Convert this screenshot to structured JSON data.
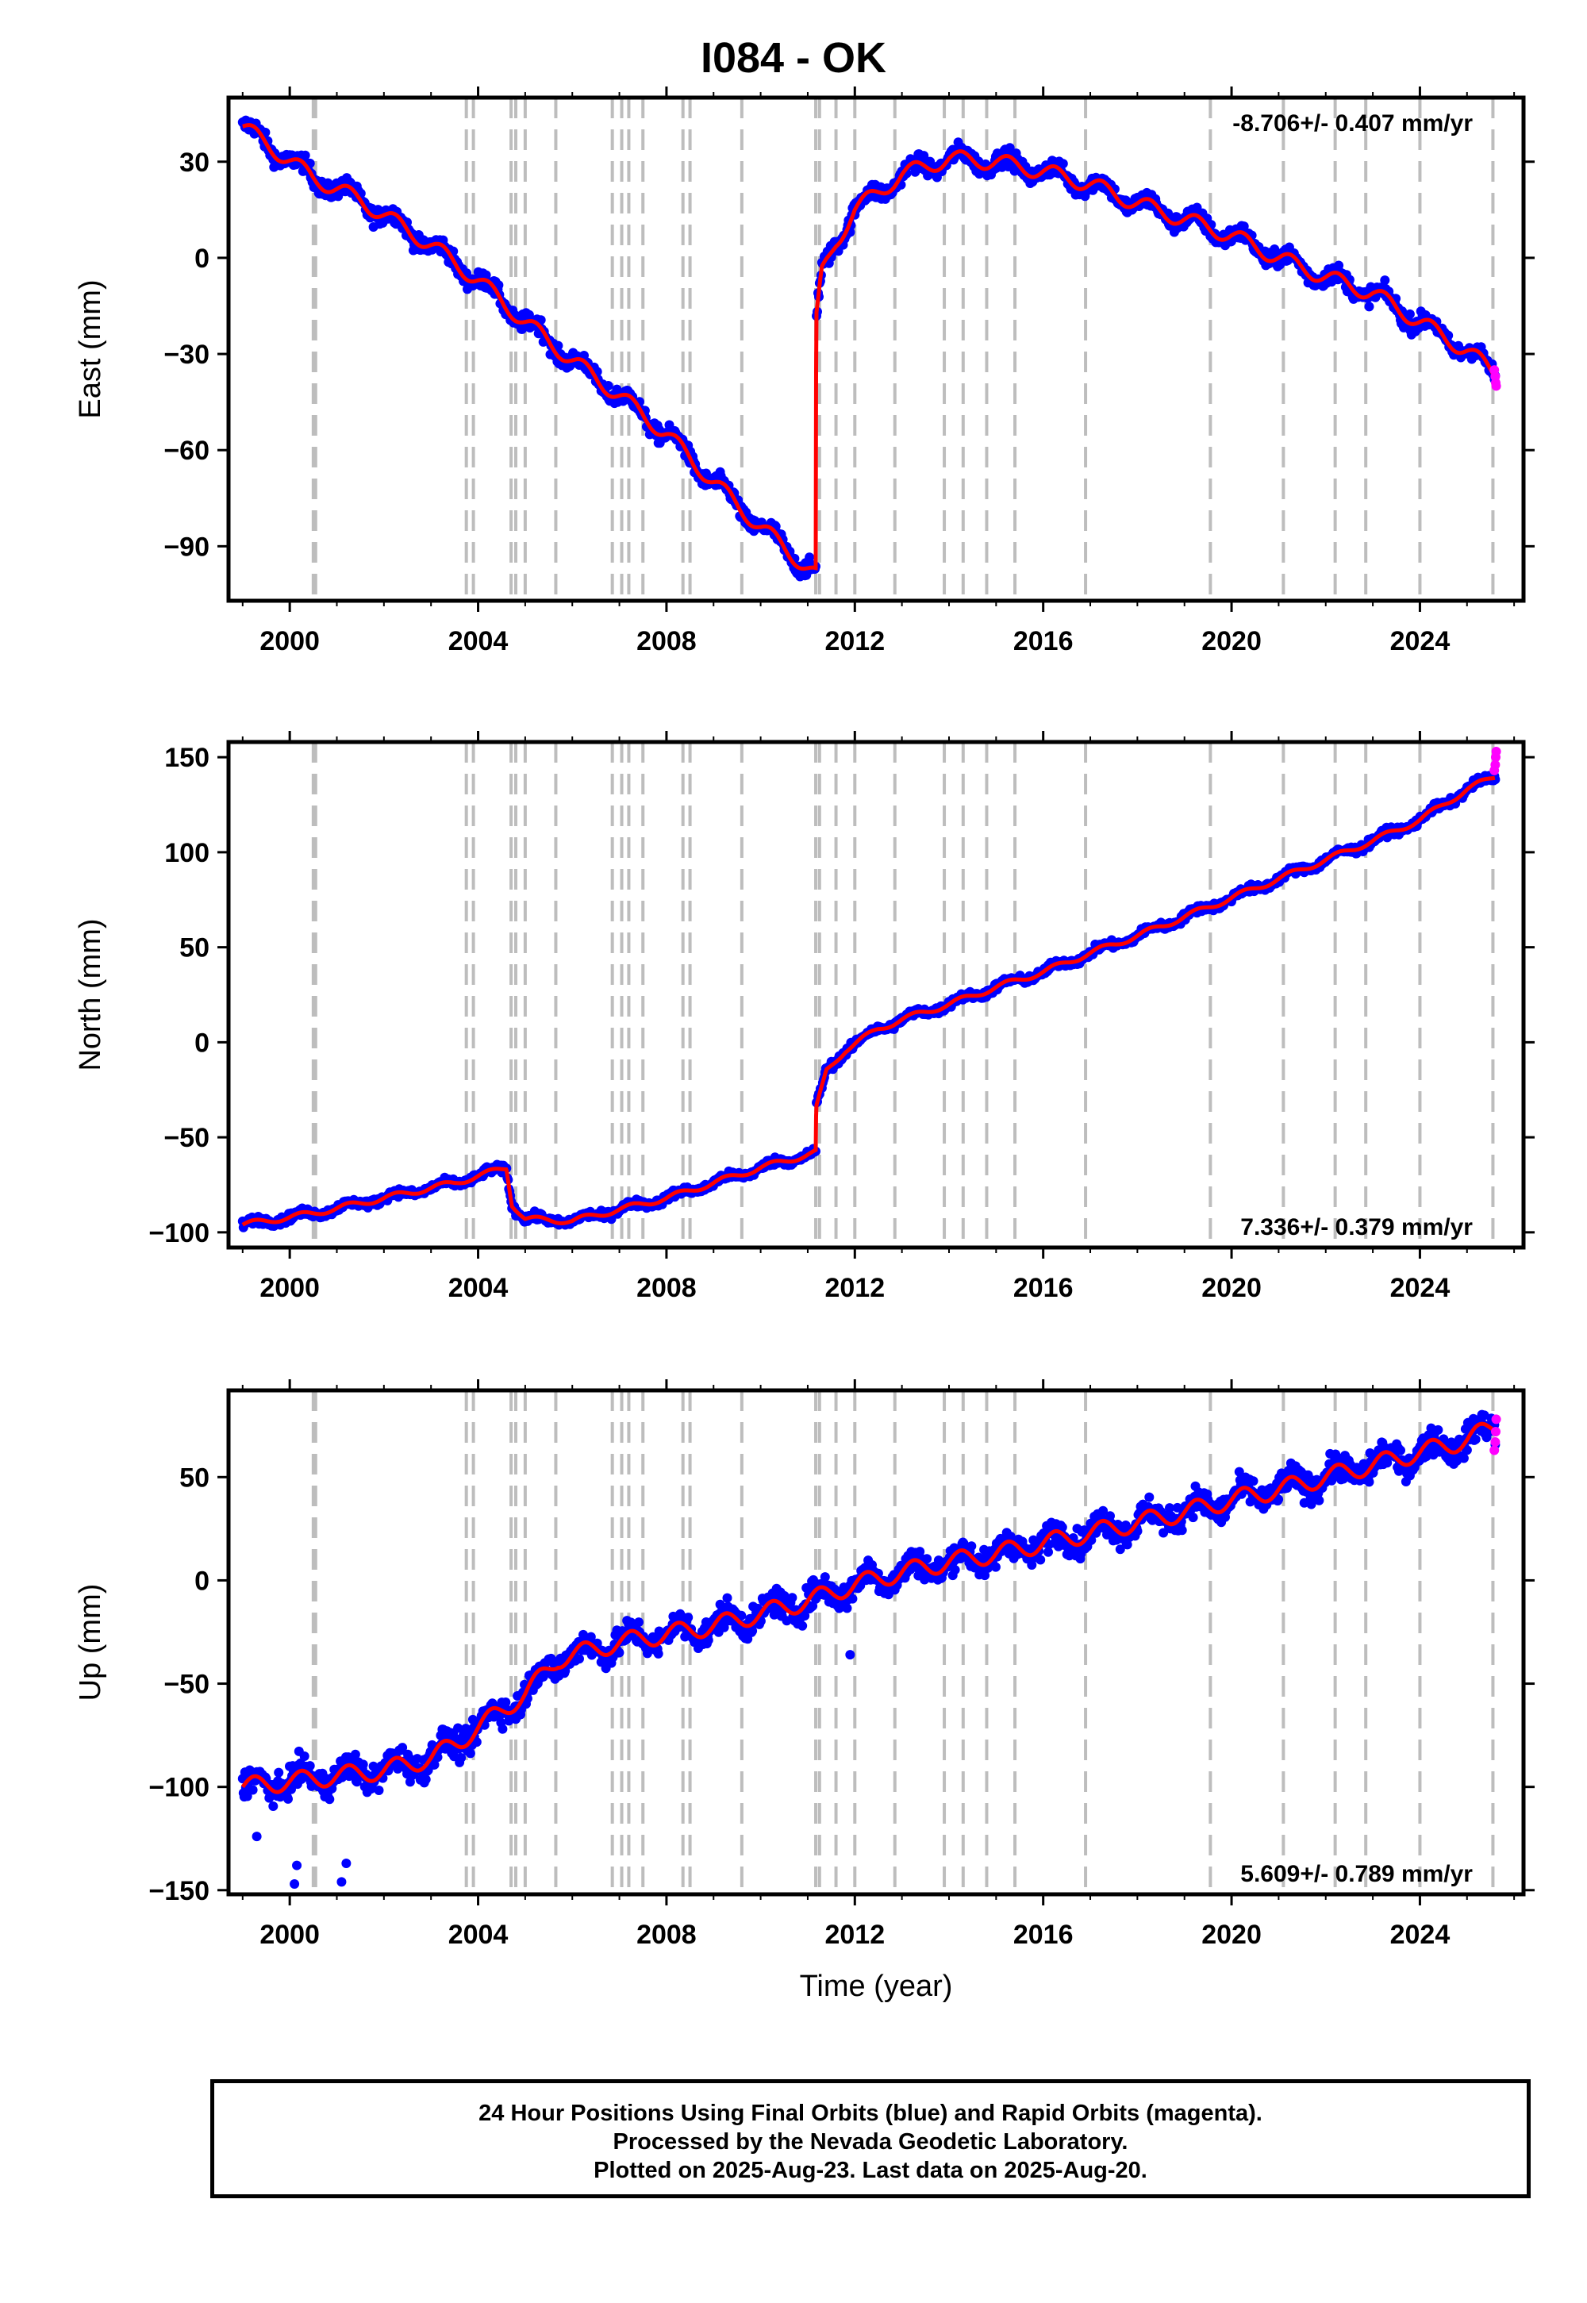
{
  "title": "I084 - OK",
  "colors": {
    "final": "#0000ff",
    "rapid": "#ff00ff",
    "model": "#ff0000",
    "grid": "#bdbdbd"
  },
  "footer": {
    "line1": "24 Hour Positions Using Final Orbits (blue) and Rapid Orbits (magenta).",
    "line2": "Processed by the Nevada Geodetic Laboratory.",
    "line3": "Plotted on 2025-Aug-23. Last data on 2025-Aug-20."
  },
  "chart_data": [
    {
      "type": "scatter",
      "ylabel": "East (mm)",
      "xlabel": "",
      "xlim": [
        1998.7,
        2026.2
      ],
      "ylim": [
        -107,
        50
      ],
      "xticks": [
        2000,
        2004,
        2008,
        2012,
        2016,
        2020,
        2024
      ],
      "yticks": [
        30,
        0,
        -30,
        -60,
        -90
      ],
      "rate_text": "-8.706+/- 0.407 mm/yr",
      "rate_position": "top-right",
      "steps": [
        2000.5,
        2000.55,
        2003.75,
        2003.9,
        2004.7,
        2004.8,
        2005.0,
        2005.65,
        2006.85,
        2007.05,
        2007.2,
        2007.5,
        2008.35,
        2008.5,
        2009.6,
        2011.17,
        2011.25,
        2011.6,
        2012.0,
        2012.85,
        2013.9,
        2014.3,
        2014.8,
        2015.4,
        2016.9,
        2019.55,
        2021.1,
        2022.2,
        2022.85,
        2024.0,
        2025.55
      ],
      "trend": [
        {
          "x": 1999.0,
          "y": 41
        },
        {
          "x": 2000.5,
          "y": 25
        },
        {
          "x": 2001.5,
          "y": 18
        },
        {
          "x": 2003.0,
          "y": 4
        },
        {
          "x": 2004.0,
          "y": -7
        },
        {
          "x": 2005.0,
          "y": -20
        },
        {
          "x": 2006.0,
          "y": -32
        },
        {
          "x": 2007.0,
          "y": -43
        },
        {
          "x": 2008.0,
          "y": -55
        },
        {
          "x": 2009.0,
          "y": -70
        },
        {
          "x": 2010.0,
          "y": -84
        },
        {
          "x": 2011.17,
          "y": -99
        },
        {
          "x": 2011.18,
          "y": -20
        },
        {
          "x": 2011.3,
          "y": -5
        },
        {
          "x": 2011.6,
          "y": 5
        },
        {
          "x": 2012.0,
          "y": 15
        },
        {
          "x": 2013.0,
          "y": 26
        },
        {
          "x": 2014.0,
          "y": 31
        },
        {
          "x": 2015.0,
          "y": 30
        },
        {
          "x": 2016.0,
          "y": 27
        },
        {
          "x": 2017.0,
          "y": 23
        },
        {
          "x": 2018.0,
          "y": 17
        },
        {
          "x": 2019.0,
          "y": 12
        },
        {
          "x": 2020.0,
          "y": 7
        },
        {
          "x": 2021.0,
          "y": 0
        },
        {
          "x": 2022.0,
          "y": -6
        },
        {
          "x": 2023.0,
          "y": -11
        },
        {
          "x": 2024.0,
          "y": -20
        },
        {
          "x": 2025.0,
          "y": -29
        },
        {
          "x": 2025.6,
          "y": -36
        }
      ],
      "seasonal_amp": 2.5,
      "scatter": 2.6,
      "rapid_points": [
        {
          "x": 2025.58,
          "y": -35
        },
        {
          "x": 2025.6,
          "y": -37
        },
        {
          "x": 2025.61,
          "y": -39
        },
        {
          "x": 2025.62,
          "y": -40
        }
      ]
    },
    {
      "type": "scatter",
      "ylabel": "North (mm)",
      "xlabel": "",
      "xlim": [
        1998.7,
        2026.2
      ],
      "ylim": [
        -108,
        158
      ],
      "xticks": [
        2000,
        2004,
        2008,
        2012,
        2016,
        2020,
        2024
      ],
      "yticks": [
        150,
        100,
        50,
        0,
        -50,
        -100
      ],
      "rate_text": "7.336+/- 0.379 mm/yr",
      "rate_position": "bottom-right",
      "steps": [
        2000.5,
        2000.55,
        2003.75,
        2003.9,
        2004.7,
        2004.8,
        2005.0,
        2005.65,
        2006.85,
        2007.05,
        2007.2,
        2007.5,
        2008.35,
        2008.5,
        2009.6,
        2011.17,
        2011.25,
        2011.6,
        2012.0,
        2012.85,
        2013.9,
        2014.3,
        2014.8,
        2015.4,
        2016.9,
        2019.55,
        2021.1,
        2022.2,
        2022.85,
        2024.0,
        2025.55
      ],
      "trend": [
        {
          "x": 1999.0,
          "y": -96
        },
        {
          "x": 2000.5,
          "y": -90
        },
        {
          "x": 2002.0,
          "y": -82
        },
        {
          "x": 2003.5,
          "y": -74
        },
        {
          "x": 2004.6,
          "y": -66
        },
        {
          "x": 2004.72,
          "y": -85
        },
        {
          "x": 2005.0,
          "y": -93
        },
        {
          "x": 2006.0,
          "y": -94
        },
        {
          "x": 2007.0,
          "y": -88
        },
        {
          "x": 2008.0,
          "y": -82
        },
        {
          "x": 2009.0,
          "y": -74
        },
        {
          "x": 2010.0,
          "y": -66
        },
        {
          "x": 2011.17,
          "y": -58
        },
        {
          "x": 2011.18,
          "y": -35
        },
        {
          "x": 2011.4,
          "y": -15
        },
        {
          "x": 2011.8,
          "y": -4
        },
        {
          "x": 2012.5,
          "y": 7
        },
        {
          "x": 2013.0,
          "y": 12
        },
        {
          "x": 2014.0,
          "y": 20
        },
        {
          "x": 2015.0,
          "y": 29
        },
        {
          "x": 2016.0,
          "y": 37
        },
        {
          "x": 2017.0,
          "y": 47
        },
        {
          "x": 2018.0,
          "y": 56
        },
        {
          "x": 2019.0,
          "y": 66
        },
        {
          "x": 2020.0,
          "y": 76
        },
        {
          "x": 2021.0,
          "y": 86
        },
        {
          "x": 2022.0,
          "y": 96
        },
        {
          "x": 2023.0,
          "y": 106
        },
        {
          "x": 2024.0,
          "y": 117
        },
        {
          "x": 2025.0,
          "y": 133
        },
        {
          "x": 2025.6,
          "y": 140
        }
      ],
      "seasonal_amp": 1.5,
      "scatter": 2.0,
      "rapid_points": [
        {
          "x": 2025.58,
          "y": 143
        },
        {
          "x": 2025.6,
          "y": 146
        },
        {
          "x": 2025.61,
          "y": 150
        },
        {
          "x": 2025.62,
          "y": 153
        }
      ]
    },
    {
      "type": "scatter",
      "ylabel": "Up (mm)",
      "xlabel": "Time (year)",
      "xlim": [
        1998.7,
        2026.2
      ],
      "ylim": [
        -152,
        92
      ],
      "xticks": [
        2000,
        2004,
        2008,
        2012,
        2016,
        2020,
        2024
      ],
      "yticks": [
        50,
        0,
        -50,
        -100,
        -150
      ],
      "rate_text": "5.609+/- 0.789 mm/yr",
      "rate_position": "bottom-right",
      "steps": [
        2000.5,
        2000.55,
        2003.75,
        2003.9,
        2004.7,
        2004.8,
        2005.0,
        2005.65,
        2006.85,
        2007.05,
        2007.2,
        2007.5,
        2008.35,
        2008.5,
        2009.6,
        2011.17,
        2011.25,
        2011.6,
        2012.0,
        2012.85,
        2013.9,
        2014.3,
        2014.8,
        2015.4,
        2016.9,
        2019.55,
        2021.1,
        2022.2,
        2022.85,
        2024.0,
        2025.55
      ],
      "trend": [
        {
          "x": 1999.0,
          "y": -100
        },
        {
          "x": 2000.5,
          "y": -96
        },
        {
          "x": 2002.0,
          "y": -92
        },
        {
          "x": 2003.0,
          "y": -86
        },
        {
          "x": 2003.6,
          "y": -78
        },
        {
          "x": 2004.5,
          "y": -63
        },
        {
          "x": 2005.0,
          "y": -55
        },
        {
          "x": 2005.7,
          "y": -38
        },
        {
          "x": 2007.0,
          "y": -30
        },
        {
          "x": 2008.0,
          "y": -26
        },
        {
          "x": 2009.0,
          "y": -22
        },
        {
          "x": 2010.0,
          "y": -16
        },
        {
          "x": 2011.0,
          "y": -10
        },
        {
          "x": 2012.0,
          "y": -2
        },
        {
          "x": 2013.0,
          "y": 4
        },
        {
          "x": 2014.0,
          "y": 9
        },
        {
          "x": 2015.0,
          "y": 13
        },
        {
          "x": 2016.0,
          "y": 18
        },
        {
          "x": 2017.0,
          "y": 23
        },
        {
          "x": 2018.0,
          "y": 28
        },
        {
          "x": 2019.0,
          "y": 33
        },
        {
          "x": 2020.0,
          "y": 39
        },
        {
          "x": 2021.0,
          "y": 44
        },
        {
          "x": 2022.0,
          "y": 50
        },
        {
          "x": 2023.0,
          "y": 56
        },
        {
          "x": 2024.0,
          "y": 62
        },
        {
          "x": 2025.0,
          "y": 68
        },
        {
          "x": 2025.6,
          "y": 75
        }
      ],
      "seasonal_amp": 4.5,
      "scatter": 6.5,
      "rapid_points": [
        {
          "x": 2025.58,
          "y": 63
        },
        {
          "x": 2025.6,
          "y": 67
        },
        {
          "x": 2025.61,
          "y": 72
        },
        {
          "x": 2025.62,
          "y": 78
        }
      ],
      "outliers": [
        {
          "x": 2000.1,
          "y": -147
        },
        {
          "x": 2000.15,
          "y": -138
        },
        {
          "x": 2001.2,
          "y": -137
        },
        {
          "x": 2001.1,
          "y": -146
        },
        {
          "x": 1999.3,
          "y": -124
        },
        {
          "x": 2011.9,
          "y": -36
        }
      ]
    }
  ]
}
